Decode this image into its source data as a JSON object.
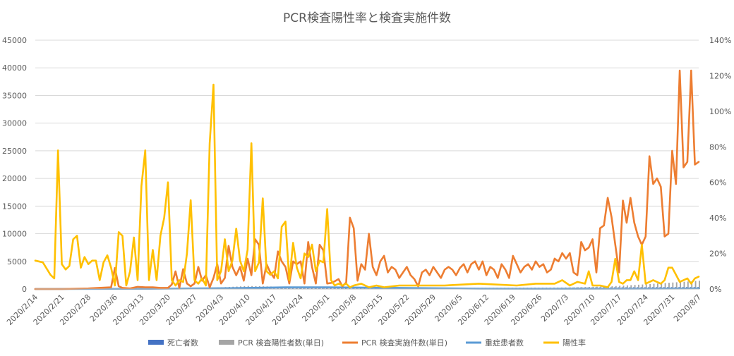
{
  "chart_data": {
    "type": "line",
    "title": "PCR検査陽性率と検査実施件数",
    "y_left": {
      "min": 0,
      "max": 45000,
      "step": 5000,
      "ticks": [
        "0",
        "5000",
        "10000",
        "15000",
        "20000",
        "25000",
        "30000",
        "35000",
        "40000",
        "45000"
      ]
    },
    "y_right": {
      "min": 0,
      "max": 1.4,
      "step": 0.2,
      "ticks": [
        "0%",
        "20%",
        "40%",
        "60%",
        "80%",
        "100%",
        "120%",
        "140%"
      ]
    },
    "x_start": "2020-02-14",
    "x_end": "2020-08-07",
    "x_tick_labels": [
      "2020/2/14",
      "2020/2/21",
      "2020/2/28",
      "2020/3/6",
      "2020/3/13",
      "2020/3/20",
      "2020/3/27",
      "2020/4/3",
      "2020/4/10",
      "2020/4/17",
      "2020/4/24",
      "2020/5/1",
      "2020/5/8",
      "2020/5/15",
      "2020/5/22",
      "2020/5/29",
      "2020/6/5",
      "2020/6/12",
      "2020/6/19",
      "2020/6/26",
      "2020/7/3",
      "2020/7/10",
      "2020/7/17",
      "2020/7/24",
      "2020/7/31",
      "2020/8/7"
    ],
    "grid": true,
    "legend_position": "bottom",
    "series": [
      {
        "name": "死亡者数",
        "axis": "left",
        "kind": "bar",
        "color": "#4472c4",
        "x": [
          "2020-02-14",
          "2020-03-31",
          "2020-04-30",
          "2020-05-31",
          "2020-06-30",
          "2020-07-15",
          "2020-07-25",
          "2020-08-07"
        ],
        "y": [
          0,
          60,
          150,
          210,
          260,
          300,
          330,
          350
        ]
      },
      {
        "name": "PCR 検査陽性者数(単日)",
        "axis": "left",
        "kind": "bar",
        "color": "#a5a5a5",
        "x": [
          "2020-02-14",
          "2020-03-15",
          "2020-04-01",
          "2020-04-10",
          "2020-04-20",
          "2020-05-01",
          "2020-05-10",
          "2020-05-20",
          "2020-06-10",
          "2020-06-25",
          "2020-07-05",
          "2020-07-15",
          "2020-07-25",
          "2020-08-07"
        ],
        "y": [
          5,
          40,
          250,
          550,
          400,
          200,
          80,
          40,
          40,
          110,
          300,
          500,
          900,
          1500
        ]
      },
      {
        "name": "PCR 検査実施件数(単日)",
        "axis": "left",
        "kind": "line",
        "color": "#ed7d31",
        "x": [
          "2020-02-14",
          "2020-02-21",
          "2020-02-28",
          "2020-03-05",
          "2020-03-06",
          "2020-03-07",
          "2020-03-08",
          "2020-03-10",
          "2020-03-12",
          "2020-03-14",
          "2020-03-16",
          "2020-03-18",
          "2020-03-20",
          "2020-03-21",
          "2020-03-22",
          "2020-03-23",
          "2020-03-24",
          "2020-03-25",
          "2020-03-26",
          "2020-03-27",
          "2020-03-28",
          "2020-03-29",
          "2020-03-30",
          "2020-03-31",
          "2020-04-01",
          "2020-04-02",
          "2020-04-03",
          "2020-04-04",
          "2020-04-05",
          "2020-04-06",
          "2020-04-07",
          "2020-04-08",
          "2020-04-09",
          "2020-04-10",
          "2020-04-11",
          "2020-04-12",
          "2020-04-13",
          "2020-04-14",
          "2020-04-15",
          "2020-04-16",
          "2020-04-17",
          "2020-04-18",
          "2020-04-19",
          "2020-04-20",
          "2020-04-21",
          "2020-04-22",
          "2020-04-23",
          "2020-04-24",
          "2020-04-25",
          "2020-04-26",
          "2020-04-27",
          "2020-04-28",
          "2020-04-29",
          "2020-04-30",
          "2020-05-01",
          "2020-05-02",
          "2020-05-03",
          "2020-05-04",
          "2020-05-05",
          "2020-05-06",
          "2020-05-07",
          "2020-05-08",
          "2020-05-09",
          "2020-05-10",
          "2020-05-11",
          "2020-05-12",
          "2020-05-13",
          "2020-05-14",
          "2020-05-15",
          "2020-05-16",
          "2020-05-17",
          "2020-05-18",
          "2020-05-19",
          "2020-05-20",
          "2020-05-21",
          "2020-05-22",
          "2020-05-23",
          "2020-05-24",
          "2020-05-25",
          "2020-05-26",
          "2020-05-27",
          "2020-05-28",
          "2020-05-29",
          "2020-05-30",
          "2020-05-31",
          "2020-06-01",
          "2020-06-02",
          "2020-06-03",
          "2020-06-04",
          "2020-06-05",
          "2020-06-06",
          "2020-06-07",
          "2020-06-08",
          "2020-06-09",
          "2020-06-10",
          "2020-06-11",
          "2020-06-12",
          "2020-06-13",
          "2020-06-14",
          "2020-06-15",
          "2020-06-16",
          "2020-06-17",
          "2020-06-18",
          "2020-06-19",
          "2020-06-20",
          "2020-06-21",
          "2020-06-22",
          "2020-06-23",
          "2020-06-24",
          "2020-06-25",
          "2020-06-26",
          "2020-06-27",
          "2020-06-28",
          "2020-06-29",
          "2020-06-30",
          "2020-07-01",
          "2020-07-02",
          "2020-07-03",
          "2020-07-04",
          "2020-07-05",
          "2020-07-06",
          "2020-07-07",
          "2020-07-08",
          "2020-07-09",
          "2020-07-10",
          "2020-07-11",
          "2020-07-12",
          "2020-07-13",
          "2020-07-14",
          "2020-07-15",
          "2020-07-16",
          "2020-07-17",
          "2020-07-18",
          "2020-07-19",
          "2020-07-20",
          "2020-07-21",
          "2020-07-22",
          "2020-07-23",
          "2020-07-24",
          "2020-07-25",
          "2020-07-26",
          "2020-07-27",
          "2020-07-28",
          "2020-07-29",
          "2020-07-30",
          "2020-07-31",
          "2020-08-01",
          "2020-08-02",
          "2020-08-03",
          "2020-08-04",
          "2020-08-05",
          "2020-08-06",
          "2020-08-07"
        ],
        "y": [
          0,
          0,
          100,
          300,
          3800,
          500,
          200,
          100,
          400,
          300,
          300,
          200,
          200,
          800,
          3200,
          200,
          3600,
          1000,
          500,
          1000,
          4000,
          1500,
          2500,
          300,
          2000,
          4500,
          1000,
          2000,
          7800,
          4000,
          2500,
          4000,
          1500,
          5500,
          2500,
          9000,
          8000,
          1000,
          4500,
          3000,
          2000,
          6800,
          5000,
          4000,
          1000,
          5000,
          4500,
          5000,
          1000,
          8500,
          4000,
          1000,
          8000,
          7000,
          1000,
          1100,
          1400,
          1800,
          500,
          1200,
          12900,
          11000,
          1500,
          4500,
          3500,
          10000,
          4000,
          2500,
          5000,
          6000,
          3000,
          4000,
          3500,
          2000,
          3000,
          4000,
          2500,
          1800,
          500,
          3000,
          3500,
          2500,
          4000,
          3000,
          2000,
          3500,
          4000,
          3500,
          2500,
          3800,
          4500,
          3000,
          4500,
          5000,
          3500,
          5000,
          2500,
          4000,
          3500,
          2000,
          4500,
          3500,
          2000,
          6000,
          4500,
          3000,
          4000,
          4500,
          3500,
          5000,
          4000,
          4500,
          3000,
          3500,
          5500,
          5000,
          6500,
          5500,
          6500,
          3000,
          2500,
          8500,
          7000,
          7500,
          9000,
          3000,
          11000,
          11500,
          16500,
          13000,
          8000,
          3000,
          16000,
          12000,
          16500,
          12000,
          9500,
          8000,
          9500,
          24000,
          19000,
          20000,
          18500,
          9500,
          10000,
          25000,
          19000,
          39500,
          22000,
          23000,
          39500,
          22500,
          23000
        ]
      },
      {
        "name": "重症患者数",
        "axis": "left",
        "kind": "line",
        "color": "#5b9bd5",
        "x": [
          "2020-02-14",
          "2020-03-15",
          "2020-04-05",
          "2020-04-20",
          "2020-05-01",
          "2020-05-20",
          "2020-06-10",
          "2020-07-01",
          "2020-07-20",
          "2020-08-07"
        ],
        "y": [
          10,
          40,
          150,
          300,
          320,
          200,
          80,
          50,
          60,
          100
        ]
      },
      {
        "name": "陽性率",
        "axis": "right",
        "kind": "line",
        "color": "#ffc000",
        "x": [
          "2020-02-14",
          "2020-02-16",
          "2020-02-18",
          "2020-02-19",
          "2020-02-20",
          "2020-02-21",
          "2020-02-22",
          "2020-02-23",
          "2020-02-24",
          "2020-02-25",
          "2020-02-26",
          "2020-02-27",
          "2020-02-28",
          "2020-02-29",
          "2020-03-01",
          "2020-03-02",
          "2020-03-03",
          "2020-03-04",
          "2020-03-05",
          "2020-03-06",
          "2020-03-07",
          "2020-03-08",
          "2020-03-09",
          "2020-03-10",
          "2020-03-11",
          "2020-03-12",
          "2020-03-13",
          "2020-03-14",
          "2020-03-15",
          "2020-03-16",
          "2020-03-17",
          "2020-03-18",
          "2020-03-19",
          "2020-03-20",
          "2020-03-21",
          "2020-03-22",
          "2020-03-23",
          "2020-03-24",
          "2020-03-25",
          "2020-03-26",
          "2020-03-27",
          "2020-03-28",
          "2020-03-29",
          "2020-03-30",
          "2020-03-31",
          "2020-04-01",
          "2020-04-02",
          "2020-04-03",
          "2020-04-04",
          "2020-04-05",
          "2020-04-06",
          "2020-04-07",
          "2020-04-08",
          "2020-04-09",
          "2020-04-10",
          "2020-04-11",
          "2020-04-12",
          "2020-04-13",
          "2020-04-14",
          "2020-04-15",
          "2020-04-16",
          "2020-04-17",
          "2020-04-18",
          "2020-04-19",
          "2020-04-20",
          "2020-04-21",
          "2020-04-22",
          "2020-04-23",
          "2020-04-24",
          "2020-04-25",
          "2020-04-26",
          "2020-04-27",
          "2020-04-28",
          "2020-04-29",
          "2020-04-30",
          "2020-05-01",
          "2020-05-02",
          "2020-05-03",
          "2020-05-04",
          "2020-05-05",
          "2020-05-06",
          "2020-05-07",
          "2020-05-08",
          "2020-05-10",
          "2020-05-12",
          "2020-05-14",
          "2020-05-16",
          "2020-05-20",
          "2020-05-25",
          "2020-06-01",
          "2020-06-10",
          "2020-06-20",
          "2020-06-25",
          "2020-06-30",
          "2020-07-02",
          "2020-07-04",
          "2020-07-06",
          "2020-07-08",
          "2020-07-09",
          "2020-07-10",
          "2020-07-12",
          "2020-07-14",
          "2020-07-15",
          "2020-07-16",
          "2020-07-17",
          "2020-07-18",
          "2020-07-19",
          "2020-07-20",
          "2020-07-21",
          "2020-07-22",
          "2020-07-23",
          "2020-07-24",
          "2020-07-25",
          "2020-07-26",
          "2020-07-27",
          "2020-07-28",
          "2020-07-29",
          "2020-07-30",
          "2020-07-31",
          "2020-08-01",
          "2020-08-02",
          "2020-08-03",
          "2020-08-04",
          "2020-08-05",
          "2020-08-06",
          "2020-08-07"
        ],
        "y": [
          0.16,
          0.15,
          0.08,
          0.06,
          0.78,
          0.14,
          0.11,
          0.13,
          0.28,
          0.3,
          0.12,
          0.18,
          0.14,
          0.16,
          0.16,
          0.05,
          0.15,
          0.19,
          0.12,
          0.02,
          0.32,
          0.3,
          0.02,
          0.1,
          0.29,
          0.05,
          0.58,
          0.78,
          0.05,
          0.22,
          0.05,
          0.3,
          0.4,
          0.6,
          0.05,
          0.02,
          0.05,
          0.04,
          0.2,
          0.5,
          0.05,
          0.03,
          0.06,
          0.02,
          0.82,
          1.15,
          0.05,
          0.1,
          0.28,
          0.1,
          0.16,
          0.34,
          0.16,
          0.1,
          0.22,
          0.82,
          0.1,
          0.15,
          0.51,
          0.1,
          0.08,
          0.1,
          0.06,
          0.35,
          0.38,
          0.05,
          0.26,
          0.12,
          0.06,
          0.2,
          0.18,
          0.25,
          0.1,
          0.16,
          0.15,
          0.45,
          0.05,
          0.02,
          0.03,
          0.02,
          0.03,
          0.01,
          0.02,
          0.03,
          0.01,
          0.02,
          0.01,
          0.02,
          0.02,
          0.02,
          0.03,
          0.02,
          0.03,
          0.03,
          0.05,
          0.02,
          0.04,
          0.03,
          0.1,
          0.02,
          0.02,
          0.01,
          0.04,
          0.17,
          0.04,
          0.03,
          0.05,
          0.05,
          0.1,
          0.05,
          0.25,
          0.03,
          0.04,
          0.05,
          0.04,
          0.03,
          0.05,
          0.12,
          0.12,
          0.08,
          0.04,
          0.05,
          0.06,
          0.03,
          0.06,
          0.07
        ]
      }
    ]
  }
}
